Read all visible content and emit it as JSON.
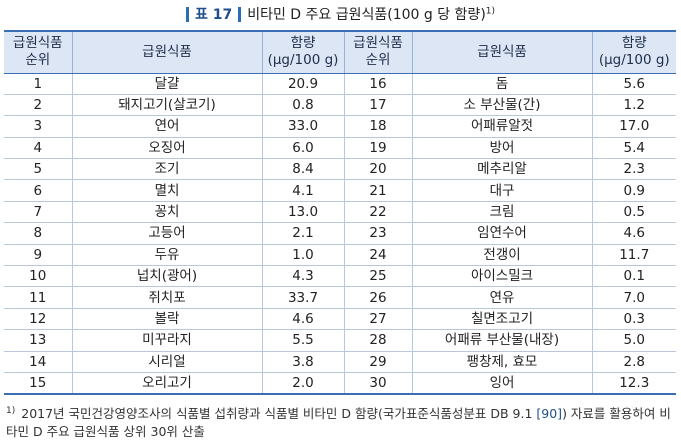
{
  "title": {
    "label": "표 17",
    "caption": "비타민 D 주요 급원식품(100 g 당 함량)",
    "sup": "1)"
  },
  "table": {
    "headers": {
      "rank1": [
        "급원식품",
        "순위"
      ],
      "food1": "급원식품",
      "amount1": [
        "함량",
        "(μg/100 g)"
      ],
      "rank2": [
        "급원식품",
        "순위"
      ],
      "food2": "급원식품",
      "amount2": [
        "함량",
        "(μg/100 g)"
      ]
    },
    "rows": [
      {
        "r1": "1",
        "f1": "달걀",
        "a1": "20.9",
        "r2": "16",
        "f2": "돔",
        "a2": "5.6"
      },
      {
        "r1": "2",
        "f1": "돼지고기(살코기)",
        "a1": "0.8",
        "r2": "17",
        "f2": "소 부산물(간)",
        "a2": "1.2"
      },
      {
        "r1": "3",
        "f1": "연어",
        "a1": "33.0",
        "r2": "18",
        "f2": "어패류알젓",
        "a2": "17.0"
      },
      {
        "r1": "4",
        "f1": "오징어",
        "a1": "6.0",
        "r2": "19",
        "f2": "방어",
        "a2": "5.4"
      },
      {
        "r1": "5",
        "f1": "조기",
        "a1": "8.4",
        "r2": "20",
        "f2": "메추리알",
        "a2": "2.3"
      },
      {
        "r1": "6",
        "f1": "멸치",
        "a1": "4.1",
        "r2": "21",
        "f2": "대구",
        "a2": "0.9"
      },
      {
        "r1": "7",
        "f1": "꽁치",
        "a1": "13.0",
        "r2": "22",
        "f2": "크림",
        "a2": "0.5"
      },
      {
        "r1": "8",
        "f1": "고등어",
        "a1": "2.1",
        "r2": "23",
        "f2": "임연수어",
        "a2": "4.6"
      },
      {
        "r1": "9",
        "f1": "두유",
        "a1": "1.0",
        "r2": "24",
        "f2": "전갱이",
        "a2": "11.7"
      },
      {
        "r1": "10",
        "f1": "넙치(광어)",
        "a1": "4.3",
        "r2": "25",
        "f2": "아이스밀크",
        "a2": "0.1"
      },
      {
        "r1": "11",
        "f1": "쥐치포",
        "a1": "33.7",
        "r2": "26",
        "f2": "연유",
        "a2": "7.0"
      },
      {
        "r1": "12",
        "f1": "볼락",
        "a1": "4.6",
        "r2": "27",
        "f2": "칠면조고기",
        "a2": "0.3"
      },
      {
        "r1": "13",
        "f1": "미꾸라지",
        "a1": "5.5",
        "r2": "28",
        "f2": "어패류 부산물(내장)",
        "a2": "5.0"
      },
      {
        "r1": "14",
        "f1": "시리얼",
        "a1": "3.8",
        "r2": "29",
        "f2": "팽창제, 효모",
        "a2": "2.8"
      },
      {
        "r1": "15",
        "f1": "오리고기",
        "a1": "2.0",
        "r2": "30",
        "f2": "잉어",
        "a2": "12.3"
      }
    ]
  },
  "footnote": {
    "sup": "1)",
    "text_before": "2017년 국민건강영양조사의 식품별 섭취량과 식품별 비타민 D 함량(국가표준식품성분표 DB 9.1 ",
    "ref": "[90]",
    "text_after": ") 자료를 활용하여 비타민 D 주요 급원식품 상위 30위 산출"
  },
  "colors": {
    "accent": "#2a6db5",
    "header_bg": "#dce6f4",
    "title_text": "#1f4e8c"
  }
}
